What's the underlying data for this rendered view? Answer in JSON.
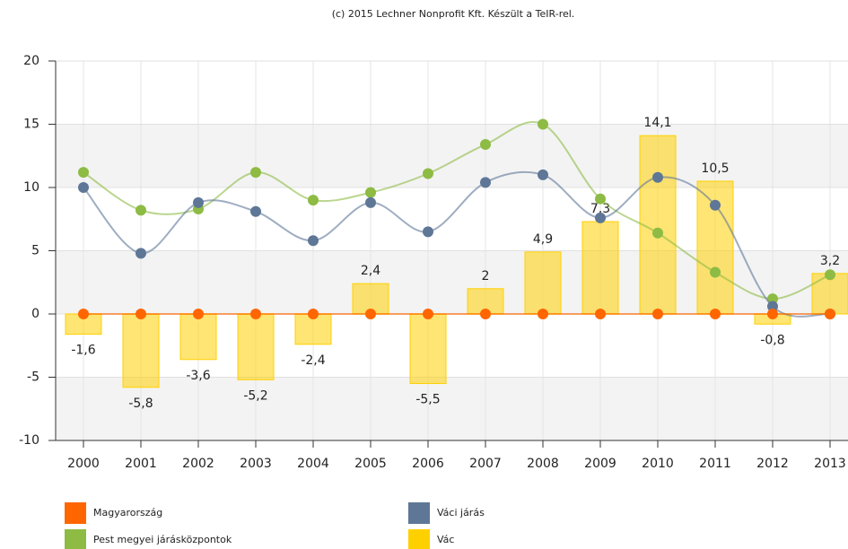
{
  "chart_data": {
    "type": "line",
    "subtitle": "(c) 2015 Lechner Nonprofit Kft. Készült a TeIR-rel.",
    "categories": [
      "2000",
      "2001",
      "2002",
      "2003",
      "2004",
      "2005",
      "2006",
      "2007",
      "2008",
      "2009",
      "2010",
      "2011",
      "2012",
      "2013"
    ],
    "ylim": [
      -10,
      20
    ],
    "yticks": [
      -10,
      -5,
      0,
      5,
      10,
      15,
      20
    ],
    "grid": true,
    "series": [
      {
        "name": "Vác",
        "type": "bar",
        "color": "#ffd000",
        "values": [
          -1.6,
          -5.8,
          -3.6,
          -5.2,
          -2.4,
          2.4,
          -5.5,
          2,
          4.9,
          7.3,
          14.1,
          10.5,
          -0.8,
          3.2
        ],
        "value_labels": [
          "-1,6",
          "-5,8",
          "-3,6",
          "-5,2",
          "-2,4",
          "2,4",
          "-5,5",
          "2",
          "4,9",
          "7,3",
          "14,1",
          "10,5",
          "-0,8",
          "3,2"
        ]
      },
      {
        "name": "Pest megyei járásközpontok",
        "type": "line",
        "color": "#8dbb44",
        "values": [
          11.2,
          8.2,
          8.3,
          11.2,
          9,
          9.6,
          11.1,
          13.4,
          15,
          9.1,
          6.4,
          3.3,
          1.2,
          3.1
        ]
      },
      {
        "name": "Váci járás",
        "type": "line",
        "color": "#5e7797",
        "values": [
          10,
          4.8,
          8.8,
          8.1,
          5.8,
          8.8,
          6.5,
          10.4,
          11,
          7.6,
          10.8,
          8.6,
          0.6,
          0
        ]
      },
      {
        "name": "Magyarország",
        "type": "line",
        "color": "#ff6600",
        "values": [
          0,
          0,
          0,
          0,
          0,
          0,
          0,
          0,
          0,
          0,
          0,
          0,
          0,
          0
        ]
      }
    ],
    "legend_order": [
      3,
      2,
      1,
      0
    ]
  }
}
